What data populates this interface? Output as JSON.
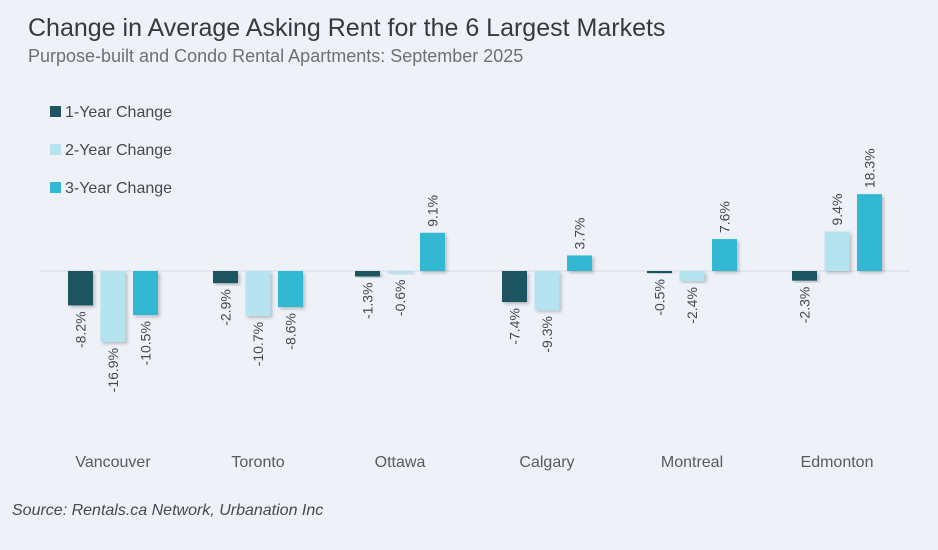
{
  "title": "Change in Average Asking Rent for the 6 Largest Markets",
  "subtitle": "Purpose-built and Condo Rental Apartments: September 2025",
  "source": "Source: Rentals.ca Network, Urbanation Inc",
  "chart_data": {
    "type": "bar",
    "categories": [
      "Vancouver",
      "Toronto",
      "Ottawa",
      "Calgary",
      "Montreal",
      "Edmonton"
    ],
    "series": [
      {
        "name": "1-Year Change",
        "color": "#1f5461",
        "values": [
          -8.2,
          -2.9,
          -1.3,
          -7.4,
          -0.5,
          -2.3
        ],
        "labels": [
          "-8.2%",
          "-2.9%",
          "-1.3%",
          "-7.4%",
          "-0.5%",
          "-2.3%"
        ]
      },
      {
        "name": "2-Year Change",
        "color": "#b5e3f0",
        "values": [
          -16.9,
          -10.7,
          -0.6,
          -9.3,
          -2.4,
          9.4
        ],
        "labels": [
          "-16.9%",
          "-10.7%",
          "-0.6%",
          "-9.3%",
          "-2.4%",
          "9.4%"
        ]
      },
      {
        "name": "3-Year Change",
        "color": "#33b8d2",
        "values": [
          -10.5,
          -8.6,
          9.1,
          3.7,
          7.6,
          18.3
        ],
        "labels": [
          "-10.5%",
          "-8.6%",
          "9.1%",
          "3.7%",
          "7.6%",
          "18.3%"
        ]
      }
    ],
    "legend_position": "top-left",
    "grid": false
  }
}
